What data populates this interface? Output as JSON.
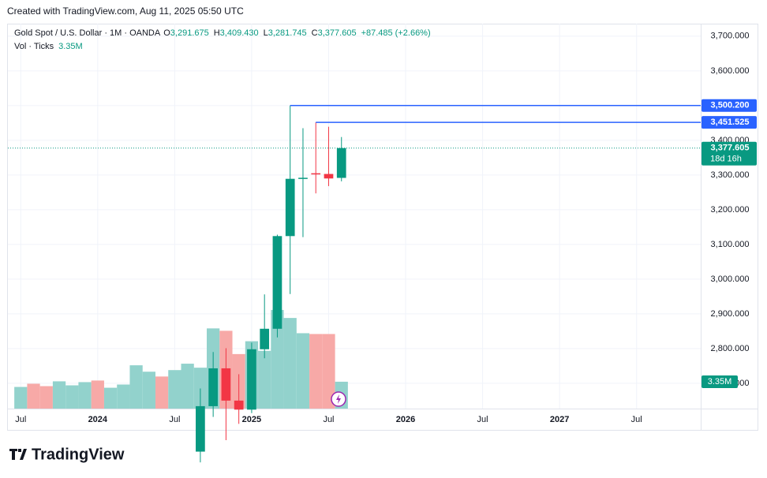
{
  "header": {
    "credit": "Created with TradingView.com, Aug 11, 2025 05:50 UTC"
  },
  "chart_data": {
    "type": "candlestick",
    "title": "Gold Spot / U.S. Dollar · 1M · OANDA",
    "legend_items": [
      {
        "key": "O",
        "value": 3291.675,
        "label": "3,291.675"
      },
      {
        "key": "H",
        "value": 3409.43,
        "label": "3,409.430"
      },
      {
        "key": "L",
        "value": 3281.745,
        "label": "3,281.745"
      },
      {
        "key": "C",
        "value": 3377.605,
        "label": "3,377.605"
      }
    ],
    "change": "+87.485 (+2.66%)",
    "up_color": "#089981",
    "down_color": "#f23645",
    "candles": {
      "x": [
        "2024-09",
        "2024-10",
        "2024-11",
        "2024-12",
        "2025-01",
        "2025-02",
        "2025-03",
        "2025-04",
        "2025-05",
        "2025-06",
        "2025-07",
        "2025-08"
      ],
      "open": [
        2503,
        2634,
        2743,
        2650,
        2624,
        2798,
        2857,
        3124,
        3289,
        3305,
        3303,
        3291.675
      ],
      "high": [
        2685,
        2790,
        2801,
        2726,
        2817,
        2956,
        3128,
        3500.2,
        3435,
        3451.525,
        3439,
        3409.43
      ],
      "low": [
        2472,
        2603,
        2536,
        2583,
        2614,
        2772,
        2832,
        2957,
        3121,
        3247,
        3268,
        3281.745
      ],
      "close": [
        2634,
        2743,
        2650,
        2624,
        2798,
        2857,
        3124,
        3289,
        3292,
        3303,
        3290,
        3377.605
      ]
    },
    "volume": {
      "name": "Vol · Ticks",
      "last_label": "3.35M",
      "x": [
        "2023-07",
        "2023-08",
        "2023-09",
        "2023-10",
        "2023-11",
        "2023-12",
        "2024-01",
        "2024-02",
        "2024-03",
        "2024-04",
        "2024-05",
        "2024-06",
        "2024-07",
        "2024-08",
        "2024-09",
        "2024-10",
        "2024-11",
        "2024-12",
        "2025-01",
        "2025-02",
        "2025-03",
        "2025-04",
        "2025-05",
        "2025-06",
        "2025-07",
        "2025-08"
      ],
      "values": [
        2.7,
        3.1,
        2.8,
        3.4,
        2.9,
        3.3,
        3.5,
        2.6,
        3.0,
        5.4,
        4.6,
        4.0,
        4.8,
        5.6,
        5.1,
        10.0,
        9.7,
        6.8,
        8.4,
        7.2,
        12.3,
        11.3,
        9.4,
        9.3,
        9.3,
        3.35
      ],
      "colors": [
        "#92d2cc",
        "#f7a9a7",
        "#f7a9a7",
        "#92d2cc",
        "#92d2cc",
        "#92d2cc",
        "#f7a9a7",
        "#92d2cc",
        "#92d2cc",
        "#92d2cc",
        "#92d2cc",
        "#f7a9a7",
        "#92d2cc",
        "#92d2cc",
        "#92d2cc",
        "#92d2cc",
        "#f7a9a7",
        "#f7a9a7",
        "#92d2cc",
        "#92d2cc",
        "#92d2cc",
        "#92d2cc",
        "#92d2cc",
        "#f7a9a7",
        "#f7a9a7",
        "#92d2cc"
      ],
      "ylim": [
        0,
        48
      ]
    },
    "price_lines": [
      {
        "from": "2025-04",
        "value": 3500.2,
        "label": "3,500.200",
        "color": "#2962ff"
      },
      {
        "from": "2025-06",
        "value": 3451.525,
        "label": "3,451.525",
        "color": "#2962ff"
      }
    ],
    "last_price": {
      "value": 3377.605,
      "label": "3,377.605",
      "countdown": "18d 16h"
    },
    "xlim": [
      "2023-06",
      "2027-12"
    ],
    "xticks": [
      {
        "value": "2023-07",
        "label": "Jul"
      },
      {
        "value": "2024-01",
        "label": "2024"
      },
      {
        "value": "2024-07",
        "label": "Jul"
      },
      {
        "value": "2025-01",
        "label": "2025"
      },
      {
        "value": "2025-07",
        "label": "Jul"
      },
      {
        "value": "2026-01",
        "label": "2026"
      },
      {
        "value": "2026-07",
        "label": "Jul"
      },
      {
        "value": "2027-01",
        "label": "2027"
      },
      {
        "value": "2027-07",
        "label": "Jul"
      }
    ],
    "ylim": [
      2627,
      3736
    ],
    "yticks": [
      {
        "value": 2700,
        "label": "2,700.000"
      },
      {
        "value": 2800,
        "label": "2,800.000"
      },
      {
        "value": 2900,
        "label": "2,900.000"
      },
      {
        "value": 3000,
        "label": "3,000.000"
      },
      {
        "value": 3100,
        "label": "3,100.000"
      },
      {
        "value": 3200,
        "label": "3,200.000"
      },
      {
        "value": 3300,
        "label": "3,300.000"
      },
      {
        "value": 3400,
        "label": "3,400.000"
      },
      {
        "value": 3500,
        "label": "3,500.000"
      },
      {
        "value": 3600,
        "label": "3,600.000"
      },
      {
        "value": 3700,
        "label": "3,700.000"
      }
    ],
    "grid": true
  },
  "footer": {
    "brand": "TradingView"
  }
}
